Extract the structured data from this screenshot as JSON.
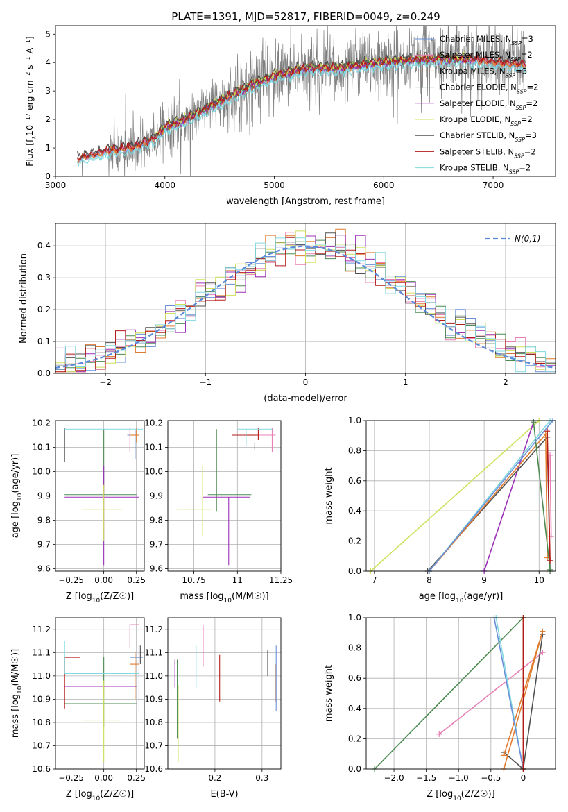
{
  "figure_title": "PLATE=1391, MJD=52817, FIBERID=0049, z=0.249",
  "colors": {
    "Chabrier MILES": "#6a8fd8",
    "Salpeter MILES": "#e87fb4",
    "Kroupa MILES": "#e07a2c",
    "Chabrier ELODIE": "#4c8a50",
    "Salpeter ELODIE": "#9b30b7",
    "Kroupa ELODIE": "#cfe05a",
    "Chabrier STELIB": "#505050",
    "Salpeter STELIB": "#b51b1b",
    "Kroupa STELIB": "#80d8e0",
    "data": "#808080",
    "normal": "#5b8ad8"
  },
  "chart_data": [
    {
      "id": "spectrum",
      "type": "line",
      "xlabel": "wavelength [Angstrom, rest frame]",
      "ylabel": "Flux [f_λ 10^-17 erg cm^-2 s^-1 A^-1]",
      "xlim": [
        3000,
        7570
      ],
      "ylim": [
        0,
        5.3
      ],
      "xticks": [
        3000,
        4000,
        5000,
        6000,
        7000
      ],
      "yticks": [
        0,
        1,
        2,
        3,
        4,
        5
      ],
      "legend_placement": "right",
      "legend": [
        {
          "name": "Chabrier MILES",
          "nssp": 3
        },
        {
          "name": "Salpeter MILES",
          "nssp": 2
        },
        {
          "name": "Kroupa MILES",
          "nssp": 3
        },
        {
          "name": "Chabrier ELODIE",
          "nssp": 2
        },
        {
          "name": "Salpeter ELODIE",
          "nssp": 2
        },
        {
          "name": "Kroupa ELODIE",
          "nssp": 2
        },
        {
          "name": "Chabrier STELIB",
          "nssp": 3
        },
        {
          "name": "Salpeter STELIB",
          "nssp": 2
        },
        {
          "name": "Kroupa STELIB",
          "nssp": 2
        }
      ],
      "data_range": [
        3200,
        7300
      ],
      "model_anchors": {
        "x": [
          3200,
          3500,
          3700,
          3900,
          4000,
          4200,
          4400,
          4600,
          4800,
          5000,
          5300,
          5600,
          6000,
          6400,
          6800,
          7000,
          7300
        ],
        "y": [
          0.6,
          0.9,
          1.0,
          1.3,
          1.7,
          2.0,
          2.4,
          2.8,
          3.2,
          3.5,
          3.8,
          3.8,
          4.0,
          4.1,
          4.1,
          4.0,
          3.9
        ]
      }
    },
    {
      "id": "residuals",
      "type": "histogram",
      "xlabel": "(data-model)/error",
      "ylabel": "Normed distribution",
      "xlim": [
        -2.5,
        2.5
      ],
      "ylim": [
        0,
        0.47
      ],
      "xticks": [
        -2,
        -1,
        0,
        1,
        2
      ],
      "yticks": [
        0.0,
        0.1,
        0.2,
        0.3,
        0.4
      ],
      "bin_width": 0.1,
      "legend_placement": "top-right",
      "normal_label": "N(0,1)",
      "grid": true
    },
    {
      "id": "age_vs_Z",
      "type": "errorbar",
      "xlabel": "Z [log10(Z/Z☉)]",
      "ylabel": "age  [log10(age/yr)]",
      "xlim": [
        -0.37,
        0.31
      ],
      "ylim": [
        9.59,
        10.21
      ],
      "xticks": [
        -0.25,
        0.0,
        0.25
      ],
      "yticks": [
        9.6,
        9.7,
        9.8,
        9.9,
        10.0,
        10.1,
        10.2
      ],
      "points": [
        {
          "model": "Chabrier MILES",
          "x": 0.24,
          "y": 10.15,
          "xerr": [
            0.06,
            0.03
          ],
          "yerr": [
            0.1,
            0.02
          ]
        },
        {
          "model": "Salpeter MILES",
          "x": 0.2,
          "y": 10.15,
          "xerr": [
            0.0,
            0.0
          ],
          "yerr": [
            0.07,
            0.03
          ]
        },
        {
          "model": "Kroupa MILES",
          "x": 0.25,
          "y": 10.15,
          "xerr": [
            0.05,
            0.02
          ],
          "yerr": [
            0.03,
            0.03
          ]
        },
        {
          "model": "Chabrier ELODIE",
          "x": 0.0,
          "y": 9.905,
          "xerr": [
            0.3,
            0.25
          ],
          "yerr": [
            0.0,
            0.27
          ]
        },
        {
          "model": "Salpeter ELODIE",
          "x": 0.0,
          "y": 9.895,
          "xerr": [
            0.3,
            0.27
          ],
          "yerr": [
            0.28,
            0.13
          ]
        },
        {
          "model": "Kroupa ELODIE",
          "x": 0.0,
          "y": 9.845,
          "xerr": [
            0.17,
            0.14
          ],
          "yerr": [
            0.13,
            0.1
          ]
        },
        {
          "model": "Chabrier STELIB",
          "x": -0.3,
          "y": 10.15,
          "xerr": [
            0.0,
            0.0
          ],
          "yerr": [
            0.11,
            0.03
          ]
        },
        {
          "model": "Salpeter STELIB",
          "x": -0.3,
          "y": 10.14,
          "xerr": [
            0.0,
            0.0
          ],
          "yerr": [
            0.0,
            0.0
          ]
        },
        {
          "model": "Kroupa STELIB",
          "x": -0.3,
          "y": 10.175,
          "xerr": [
            0.0,
            0.6
          ],
          "yerr": [
            0.0,
            0.0
          ]
        }
      ]
    },
    {
      "id": "age_vs_mass",
      "type": "errorbar",
      "xlabel": "mass [log10(M/M☉)]",
      "xlim": [
        10.6,
        11.25
      ],
      "ylim": [
        9.59,
        10.21
      ],
      "xticks": [
        10.75,
        11.0,
        11.25
      ],
      "yticks": [
        9.6,
        9.7,
        9.8,
        9.9,
        10.0,
        10.1,
        10.2
      ],
      "points": [
        {
          "model": "Chabrier MILES",
          "x": 11.05,
          "y": 10.15,
          "xerr": [
            0.05,
            0.08
          ],
          "yerr": [
            0.0,
            0.0
          ]
        },
        {
          "model": "Salpeter MILES",
          "x": 11.2,
          "y": 10.15,
          "xerr": [
            0.1,
            0.02
          ],
          "yerr": [
            0.07,
            0.03
          ]
        },
        {
          "model": "Kroupa MILES",
          "x": 11.05,
          "y": 10.15,
          "xerr": [
            0.0,
            0.05
          ],
          "yerr": [
            0.0,
            0.0
          ]
        },
        {
          "model": "Chabrier ELODIE",
          "x": 10.88,
          "y": 9.905,
          "xerr": [
            0.05,
            0.2
          ],
          "yerr": [
            0.07,
            0.27
          ]
        },
        {
          "model": "Salpeter ELODIE",
          "x": 10.95,
          "y": 9.895,
          "xerr": [
            0.15,
            0.12
          ],
          "yerr": [
            0.28,
            0.0
          ]
        },
        {
          "model": "Kroupa ELODIE",
          "x": 10.8,
          "y": 9.845,
          "xerr": [
            0.15,
            0.05
          ],
          "yerr": [
            0.11,
            0.18
          ]
        },
        {
          "model": "Chabrier STELIB",
          "x": 11.1,
          "y": 10.12,
          "xerr": [
            0.0,
            0.0
          ],
          "yerr": [
            0.03,
            0.0
          ]
        },
        {
          "model": "Salpeter STELIB",
          "x": 11.12,
          "y": 10.15,
          "xerr": [
            0.15,
            0.0
          ],
          "yerr": [
            0.02,
            0.03
          ]
        },
        {
          "model": "Kroupa STELIB",
          "x": 11.05,
          "y": 10.175,
          "xerr": [
            0.05,
            0.15
          ],
          "yerr": [
            0.07,
            0.0
          ]
        }
      ]
    },
    {
      "id": "mass_weight_vs_age",
      "type": "line",
      "xlabel": "age  [log10(age/yr)]",
      "ylabel": "mass weight",
      "xlim": [
        6.85,
        10.3
      ],
      "ylim": [
        0,
        1
      ],
      "xticks": [
        7,
        8,
        9,
        10
      ],
      "yticks": [
        0.0,
        0.2,
        0.4,
        0.6,
        0.8,
        1.0
      ],
      "series": [
        {
          "model": "Kroupa ELODIE",
          "x": [
            6.93,
            10.0
          ],
          "y": [
            0.0,
            1.0
          ]
        },
        {
          "model": "Salpeter ELODIE",
          "x": [
            9.0,
            9.9
          ],
          "y": [
            0.0,
            0.99
          ]
        },
        {
          "model": "Chabrier STELIB",
          "x": [
            7.97,
            10.15,
            10.2
          ],
          "y": [
            0.0,
            0.89,
            0.0
          ]
        },
        {
          "model": "Kroupa MILES",
          "x": [
            8.0,
            10.12,
            10.15
          ],
          "y": [
            0.0,
            0.91,
            0.09
          ]
        },
        {
          "model": "Chabrier ELODIE",
          "x": [
            9.9,
            10.2
          ],
          "y": [
            0.99,
            0.01
          ]
        },
        {
          "model": "Kroupa STELIB",
          "x": [
            8.0,
            10.2
          ],
          "y": [
            0.0,
            1.0
          ]
        },
        {
          "model": "Chabrier MILES",
          "x": [
            8.0,
            10.25
          ],
          "y": [
            0.0,
            1.0
          ]
        },
        {
          "model": "Salpeter MILES",
          "x": [
            10.2,
            10.22
          ],
          "y": [
            0.77,
            0.23
          ]
        },
        {
          "model": "Salpeter STELIB",
          "x": [
            10.15,
            10.2
          ],
          "y": [
            0.93,
            0.07
          ]
        }
      ]
    },
    {
      "id": "mass_vs_Z",
      "type": "errorbar",
      "xlabel": "Z [log10(Z/Z☉)]",
      "ylabel": "mass [log10(M/M☉)]",
      "xlim": [
        -0.37,
        0.31
      ],
      "ylim": [
        10.6,
        11.25
      ],
      "xticks": [
        -0.25,
        0.0,
        0.25
      ],
      "yticks": [
        10.6,
        10.7,
        10.8,
        10.9,
        11.0,
        11.1,
        11.2
      ],
      "points": [
        {
          "model": "Chabrier MILES",
          "x": 0.27,
          "y": 11.08,
          "xerr": [
            0.07,
            0.03
          ],
          "yerr": [
            0.23,
            0.05
          ]
        },
        {
          "model": "Salpeter MILES",
          "x": 0.2,
          "y": 11.22,
          "xerr": [
            0.0,
            0.07
          ],
          "yerr": [
            0.1,
            0.0
          ]
        },
        {
          "model": "Kroupa MILES",
          "x": 0.24,
          "y": 11.05,
          "xerr": [
            0.04,
            0.03
          ],
          "yerr": [
            0.15,
            0.05
          ]
        },
        {
          "model": "Chabrier ELODIE",
          "x": 0.0,
          "y": 10.88,
          "xerr": [
            0.3,
            0.25
          ],
          "yerr": [
            0.1,
            0.2
          ]
        },
        {
          "model": "Salpeter ELODIE",
          "x": 0.0,
          "y": 10.955,
          "xerr": [
            0.3,
            0.25
          ],
          "yerr": [
            0.0,
            0.0
          ]
        },
        {
          "model": "Kroupa ELODIE",
          "x": 0.0,
          "y": 10.81,
          "xerr": [
            0.17,
            0.13
          ],
          "yerr": [
            0.18,
            0.17
          ]
        },
        {
          "model": "Chabrier STELIB",
          "x": 0.28,
          "y": 11.1,
          "xerr": [
            0.0,
            0.0
          ],
          "yerr": [
            0.05,
            0.03
          ]
        },
        {
          "model": "Salpeter STELIB",
          "x": -0.3,
          "y": 11.08,
          "xerr": [
            0.0,
            0.12
          ],
          "yerr": [
            0.22,
            0.0
          ]
        },
        {
          "model": "Kroupa STELIB",
          "x": -0.3,
          "y": 11.01,
          "xerr": [
            0.0,
            0.57
          ],
          "yerr": [
            0.0,
            0.14
          ]
        }
      ]
    },
    {
      "id": "mass_vs_ebv",
      "type": "errorbar",
      "xlabel": "E(B-V)",
      "xlim": [
        0.1,
        0.34
      ],
      "ylim": [
        10.6,
        11.25
      ],
      "xticks": [
        0.2,
        0.3
      ],
      "yticks": [
        10.6,
        10.7,
        10.8,
        10.9,
        11.0,
        11.1,
        11.2
      ],
      "points": [
        {
          "model": "Chabrier MILES",
          "x": 0.33,
          "y": 11.0,
          "xerr": [
            0,
            0
          ],
          "yerr": [
            0.15,
            0.13
          ]
        },
        {
          "model": "Salpeter MILES",
          "x": 0.175,
          "y": 11.15,
          "xerr": [
            0,
            0
          ],
          "yerr": [
            0.11,
            0.07
          ]
        },
        {
          "model": "Kroupa MILES",
          "x": 0.328,
          "y": 11.0,
          "xerr": [
            0,
            0
          ],
          "yerr": [
            0.11,
            0.05
          ]
        },
        {
          "model": "Chabrier ELODIE",
          "x": 0.12,
          "y": 10.95,
          "xerr": [
            0,
            0
          ],
          "yerr": [
            0.22,
            0.12
          ]
        },
        {
          "model": "Salpeter ELODIE",
          "x": 0.115,
          "y": 10.95,
          "xerr": [
            0,
            0
          ],
          "yerr": [
            0.0,
            0.12
          ]
        },
        {
          "model": "Kroupa ELODIE",
          "x": 0.122,
          "y": 10.8,
          "xerr": [
            0,
            0
          ],
          "yerr": [
            0.17,
            0.16
          ]
        },
        {
          "model": "Chabrier STELIB",
          "x": 0.312,
          "y": 11.0,
          "xerr": [
            0,
            0
          ],
          "yerr": [
            0.0,
            0.11
          ]
        },
        {
          "model": "Salpeter STELIB",
          "x": 0.21,
          "y": 11.0,
          "xerr": [
            0,
            0
          ],
          "yerr": [
            0.11,
            0.09
          ]
        },
        {
          "model": "Kroupa STELIB",
          "x": 0.16,
          "y": 11.05,
          "xerr": [
            0,
            0
          ],
          "yerr": [
            0.1,
            0.08
          ]
        }
      ]
    },
    {
      "id": "mass_weight_vs_Z",
      "type": "line",
      "xlabel": "Z [log10(Z/Z☉)]",
      "ylabel": "mass weight",
      "xlim": [
        -2.43,
        0.5
      ],
      "ylim": [
        0,
        1
      ],
      "xticks": [
        -2.0,
        -1.5,
        -1.0,
        -0.5,
        0.0
      ],
      "yticks": [
        0.0,
        0.2,
        0.4,
        0.6,
        0.8,
        1.0
      ],
      "series": [
        {
          "model": "Chabrier ELODIE",
          "x": [
            -2.3,
            0.0
          ],
          "y": [
            0.0,
            1.0
          ]
        },
        {
          "model": "Salpeter MILES",
          "x": [
            -1.3,
            0.3
          ],
          "y": [
            0.23,
            0.77
          ]
        },
        {
          "model": "Chabrier STELIB",
          "x": [
            -0.3,
            0.0,
            0.3
          ],
          "y": [
            0.11,
            0.0,
            0.89
          ]
        },
        {
          "model": "Kroupa MILES",
          "x": [
            -0.3,
            0.3,
            -0.3
          ],
          "y": [
            0.0,
            0.91,
            0.09
          ]
        },
        {
          "model": "Kroupa STELIB",
          "x": [
            -0.42,
            0.0
          ],
          "y": [
            1.0,
            0.0
          ]
        },
        {
          "model": "Chabrier MILES",
          "x": [
            -0.45,
            0.0
          ],
          "y": [
            1.0,
            0.0
          ]
        },
        {
          "model": "Kroupa ELODIE",
          "x": [
            0.0,
            0.0
          ],
          "y": [
            0.0,
            1.0
          ]
        },
        {
          "model": "Salpeter STELIB",
          "x": [
            0.0,
            0.0
          ],
          "y": [
            0.0,
            1.0
          ]
        }
      ]
    }
  ]
}
